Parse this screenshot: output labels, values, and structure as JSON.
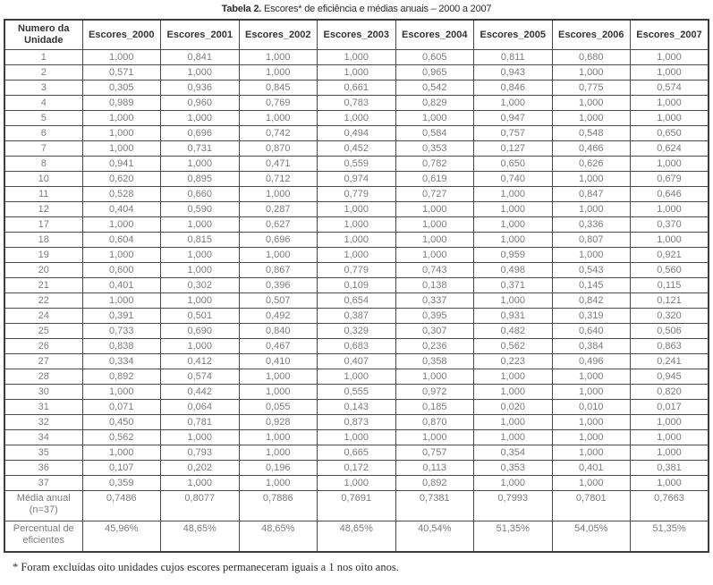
{
  "title": {
    "label": "Tabela 2.",
    "text": " Escores* de eficiência e médias anuais – 2000 a 2007"
  },
  "table": {
    "unit_header": "Numero da Unidade",
    "year_headers": [
      "Escores_2000",
      "Escores_2001",
      "Escores_2002",
      "Escores_2003",
      "Escores_2004",
      "Escores_2005",
      "Escores_2006",
      "Escores_2007"
    ],
    "rows": [
      {
        "unit": "1",
        "values": [
          "1,000",
          "0,841",
          "1,000",
          "1,000",
          "0,605",
          "0,811",
          "0,680",
          "1,000"
        ]
      },
      {
        "unit": "2",
        "values": [
          "0,571",
          "1,000",
          "1,000",
          "1,000",
          "0,965",
          "0,943",
          "1,000",
          "1,000"
        ]
      },
      {
        "unit": "3",
        "values": [
          "0,305",
          "0,936",
          "0,845",
          "0,661",
          "0,542",
          "0,846",
          "0,775",
          "0,574"
        ]
      },
      {
        "unit": "4",
        "values": [
          "0,989",
          "0,960",
          "0,769",
          "0,783",
          "0,829",
          "1,000",
          "1,000",
          "1,000"
        ]
      },
      {
        "unit": "5",
        "values": [
          "1,000",
          "1,000",
          "1,000",
          "1,000",
          "1,000",
          "0,947",
          "1,000",
          "1,000"
        ]
      },
      {
        "unit": "6",
        "values": [
          "1,000",
          "0,696",
          "0,742",
          "0,494",
          "0,584",
          "0,757",
          "0,548",
          "0,650"
        ]
      },
      {
        "unit": "7",
        "values": [
          "1,000",
          "0,731",
          "0,870",
          "0,452",
          "0,353",
          "0,127",
          "0,466",
          "0,624"
        ]
      },
      {
        "unit": "8",
        "values": [
          "0,941",
          "1,000",
          "0,471",
          "0,559",
          "0,782",
          "0,650",
          "0,626",
          "1,000"
        ]
      },
      {
        "unit": "10",
        "values": [
          "0,620",
          "0,895",
          "0,712",
          "0,974",
          "0,619",
          "0,740",
          "1,000",
          "0,679"
        ]
      },
      {
        "unit": "11",
        "values": [
          "0,528",
          "0,660",
          "1,000",
          "0,779",
          "0,727",
          "1,000",
          "0,847",
          "0,646"
        ]
      },
      {
        "unit": "12",
        "values": [
          "0,404",
          "0,590",
          "0,287",
          "1,000",
          "1,000",
          "1,000",
          "1,000",
          "1,000"
        ]
      },
      {
        "unit": "17",
        "values": [
          "1,000",
          "1,000",
          "0,627",
          "1,000",
          "1,000",
          "1,000",
          "0,336",
          "0,370"
        ]
      },
      {
        "unit": "18",
        "values": [
          "0,604",
          "0,815",
          "0,696",
          "1,000",
          "1,000",
          "1,000",
          "0,807",
          "1,000"
        ]
      },
      {
        "unit": "19",
        "values": [
          "1,000",
          "1,000",
          "1,000",
          "1,000",
          "1,000",
          "0,959",
          "1,000",
          "0,921"
        ]
      },
      {
        "unit": "20",
        "values": [
          "0,600",
          "1,000",
          "0,867",
          "0,779",
          "0,743",
          "0,498",
          "0,543",
          "0,560"
        ]
      },
      {
        "unit": "21",
        "values": [
          "0,401",
          "0,302",
          "0,396",
          "0,109",
          "0,138",
          "0,371",
          "0,145",
          "0,115"
        ]
      },
      {
        "unit": "22",
        "values": [
          "1,000",
          "1,000",
          "0,507",
          "0,654",
          "0,337",
          "1,000",
          "0,842",
          "0,121"
        ]
      },
      {
        "unit": "24",
        "values": [
          "0,391",
          "0,501",
          "0,492",
          "0,387",
          "0,395",
          "0,931",
          "0,319",
          "0,320"
        ]
      },
      {
        "unit": "25",
        "values": [
          "0,733",
          "0,690",
          "0,840",
          "0,329",
          "0,307",
          "0,482",
          "0,640",
          "0,506"
        ]
      },
      {
        "unit": "26",
        "values": [
          "0,838",
          "1,000",
          "0,467",
          "0,683",
          "0,236",
          "0,562",
          "0,384",
          "0,863"
        ]
      },
      {
        "unit": "27",
        "values": [
          "0,334",
          "0,412",
          "0,410",
          "0,407",
          "0,358",
          "0,223",
          "0,496",
          "0,241"
        ]
      },
      {
        "unit": "28",
        "values": [
          "0,892",
          "0,574",
          "1,000",
          "1,000",
          "1,000",
          "1,000",
          "1,000",
          "0,945"
        ]
      },
      {
        "unit": "30",
        "values": [
          "1,000",
          "0,442",
          "1,000",
          "0,555",
          "0,972",
          "1,000",
          "1,000",
          "0,820"
        ]
      },
      {
        "unit": "31",
        "values": [
          "0,071",
          "0,064",
          "0,055",
          "0,143",
          "0,185",
          "0,020",
          "0,010",
          "0,017"
        ]
      },
      {
        "unit": "32",
        "values": [
          "0,450",
          "0,781",
          "0,928",
          "0,873",
          "0,870",
          "1,000",
          "1,000",
          "1,000"
        ]
      },
      {
        "unit": "34",
        "values": [
          "0,562",
          "1,000",
          "1,000",
          "1,000",
          "1,000",
          "1,000",
          "1,000",
          "1,000"
        ]
      },
      {
        "unit": "35",
        "values": [
          "1,000",
          "0,793",
          "1,000",
          "0,665",
          "0,757",
          "0,354",
          "1,000",
          "1,000"
        ]
      },
      {
        "unit": "36",
        "values": [
          "0,107",
          "0,202",
          "0,196",
          "0,172",
          "0,113",
          "0,353",
          "0,401",
          "0,381"
        ]
      },
      {
        "unit": "37",
        "values": [
          "0,359",
          "1,000",
          "1,000",
          "1,000",
          "0,892",
          "1,000",
          "1,000",
          "1,000"
        ]
      }
    ],
    "summary_rows": [
      {
        "label": "Média anual (n=37)",
        "values": [
          "0,7486",
          "0,8077",
          "0,7886",
          "0,7691",
          "0,7381",
          "0,7993",
          "0,7801",
          "0,7663"
        ]
      },
      {
        "label": "Percentual de eficientes",
        "values": [
          "45,96%",
          "48,65%",
          "48,65%",
          "48,65%",
          "40,54%",
          "51,35%",
          "54,05%",
          "51,35%"
        ]
      }
    ]
  },
  "footnote": "* Foram excluídas oito unidades cujos escores permaneceram iguais a 1 nos oito anos."
}
